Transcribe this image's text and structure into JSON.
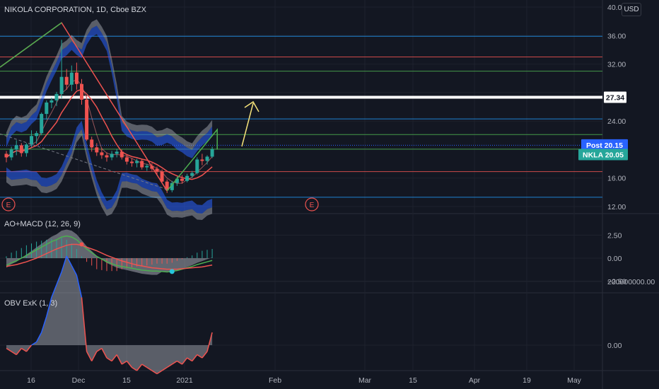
{
  "header": {
    "symbol_title": "NIKOLA CORPORATION, 1D, Cboe BZX",
    "currency": "USD",
    "macd_title": "AO+MACD (12, 26, 9)",
    "obv_title": "OBV ExK (1, 3)"
  },
  "price_axis": {
    "ticks": [
      "40.00",
      "36.00",
      "32.00",
      "28.00",
      "24.00",
      "20.00",
      "16.00",
      "12.00"
    ],
    "ylim": [
      12,
      40
    ]
  },
  "macd_axis": {
    "ticks": [
      "2.50",
      "0.00",
      "−2.50"
    ]
  },
  "obv_axis": {
    "ticks": [
      "200000000.00",
      "0.00"
    ]
  },
  "time_axis": {
    "labels": [
      "16",
      "Dec",
      "15",
      "2021",
      "Feb",
      "Mar",
      "15",
      "Apr",
      "19",
      "May"
    ]
  },
  "price_labels": [
    {
      "text": "27.34",
      "style": "white"
    },
    {
      "text": "Post  20.15",
      "style": "blue"
    },
    {
      "text": "NKLA  20.05",
      "style": "teal"
    }
  ],
  "earnings_marker": "E",
  "colors": {
    "background": "#131722",
    "grid": "#1e222d",
    "up": "#26a69a",
    "down": "#ef5350",
    "blue_line": "#2962ff",
    "hline_blue": "#2196f3",
    "hline_red": "#ef5350",
    "hline_green": "#4caf50",
    "arrow": "#f5e27a"
  },
  "chart_data": [
    {
      "type": "candlestick",
      "title": "NIKOLA CORPORATION, 1D, Cboe BZX",
      "ylim": [
        12,
        40
      ],
      "horizontal_levels": [
        {
          "price": 35.9,
          "color": "blue"
        },
        {
          "price": 33.0,
          "color": "red"
        },
        {
          "price": 31.0,
          "color": "green"
        },
        {
          "price": 27.34,
          "color": "white"
        },
        {
          "price": 24.3,
          "color": "blue"
        },
        {
          "price": 22.1,
          "color": "green"
        },
        {
          "price": 20.05,
          "color": "green"
        },
        {
          "price": 16.9,
          "color": "red"
        },
        {
          "price": 13.3,
          "color": "blue"
        }
      ],
      "candles": [
        [
          19.4,
          19.8,
          18.2,
          18.9
        ],
        [
          18.9,
          20.4,
          18.5,
          20.0
        ],
        [
          20.0,
          21.3,
          19.2,
          20.6
        ],
        [
          20.6,
          20.9,
          19.0,
          19.5
        ],
        [
          19.5,
          20.9,
          19.0,
          20.7
        ],
        [
          20.7,
          22.7,
          20.3,
          21.9
        ],
        [
          21.9,
          22.6,
          20.8,
          22.3
        ],
        [
          22.3,
          25.2,
          22.0,
          25.0
        ],
        [
          25.0,
          26.9,
          24.2,
          26.6
        ],
        [
          26.6,
          27.3,
          25.8,
          26.9
        ],
        [
          26.9,
          28.1,
          26.1,
          27.8
        ],
        [
          27.8,
          35.4,
          27.2,
          30.2
        ],
        [
          30.2,
          31.3,
          28.4,
          29.1
        ],
        [
          29.1,
          31.8,
          28.2,
          30.8
        ],
        [
          30.8,
          32.2,
          28.4,
          29.2
        ],
        [
          29.2,
          29.9,
          26.3,
          27.0
        ],
        [
          27.0,
          27.5,
          21.2,
          21.4
        ],
        [
          21.4,
          21.8,
          19.7,
          20.3
        ],
        [
          20.3,
          20.9,
          19.1,
          19.6
        ],
        [
          19.6,
          20.2,
          18.7,
          19.2
        ],
        [
          19.2,
          19.6,
          18.3,
          18.9
        ],
        [
          18.9,
          19.8,
          18.5,
          19.4
        ],
        [
          19.4,
          20.1,
          18.9,
          19.7
        ],
        [
          19.7,
          20.0,
          18.6,
          18.9
        ],
        [
          18.9,
          19.3,
          17.9,
          18.3
        ],
        [
          18.3,
          18.8,
          17.6,
          18.1
        ],
        [
          18.1,
          18.7,
          17.5,
          18.4
        ],
        [
          18.4,
          18.7,
          17.2,
          17.5
        ],
        [
          17.5,
          18.0,
          17.0,
          17.7
        ],
        [
          17.7,
          18.1,
          17.0,
          17.3
        ],
        [
          17.3,
          17.6,
          16.5,
          16.9
        ],
        [
          16.9,
          17.2,
          15.3,
          15.5
        ],
        [
          15.5,
          15.8,
          13.9,
          14.3
        ],
        [
          14.3,
          15.6,
          14.0,
          15.3
        ],
        [
          15.3,
          16.2,
          14.9,
          15.9
        ],
        [
          15.9,
          16.4,
          15.2,
          15.6
        ],
        [
          15.6,
          16.6,
          15.4,
          16.3
        ],
        [
          16.3,
          17.0,
          16.0,
          16.7
        ],
        [
          16.7,
          18.9,
          16.5,
          18.6
        ],
        [
          18.6,
          19.4,
          17.8,
          18.4
        ],
        [
          18.4,
          19.2,
          17.9,
          19.0
        ],
        [
          19.0,
          20.4,
          18.8,
          20.05
        ]
      ]
    },
    {
      "type": "line",
      "title": "AO+MACD (12, 26, 9)",
      "ylim": [
        -3.5,
        3.5
      ],
      "series": [
        {
          "name": "MACD",
          "values": [
            -0.8,
            -0.5,
            -0.3,
            0,
            0.3,
            0.6,
            0.9,
            1.2,
            1.5,
            1.8,
            2.0,
            2.3,
            2.4,
            2.3,
            2.0,
            1.5,
            1.0,
            0.6,
            0.2,
            -0.1,
            -0.4,
            -0.6,
            -0.8,
            -0.9,
            -1.0,
            -1.1,
            -1.2,
            -1.3,
            -1.35,
            -1.4,
            -1.4,
            -1.45,
            -1.5,
            -1.45,
            -1.35,
            -1.2,
            -1.05,
            -0.9,
            -0.7,
            -0.55,
            -0.4,
            -0.25
          ]
        },
        {
          "name": "Signal",
          "values": [
            -0.9,
            -0.8,
            -0.7,
            -0.55,
            -0.4,
            -0.2,
            0,
            0.25,
            0.5,
            0.75,
            1.0,
            1.2,
            1.4,
            1.5,
            1.5,
            1.4,
            1.2,
            1.0,
            0.8,
            0.55,
            0.3,
            0.1,
            -0.1,
            -0.3,
            -0.45,
            -0.6,
            -0.75,
            -0.85,
            -0.95,
            -1.05,
            -1.1,
            -1.15,
            -1.2,
            -1.2,
            -1.2,
            -1.15,
            -1.1,
            -1.05,
            -1.0,
            -0.95,
            -0.85,
            -0.75
          ]
        }
      ]
    },
    {
      "type": "area",
      "title": "OBV ExK (1, 3)",
      "ylim": [
        -100000000,
        320000000
      ],
      "values": [
        -10000000,
        -20000000,
        -30000000,
        -10000000,
        -20000000,
        0,
        10000000,
        40000000,
        90000000,
        150000000,
        190000000,
        230000000,
        280000000,
        250000000,
        220000000,
        150000000,
        -20000000,
        -50000000,
        -20000000,
        -10000000,
        -40000000,
        -50000000,
        -30000000,
        -60000000,
        -50000000,
        -70000000,
        -80000000,
        -60000000,
        -70000000,
        -80000000,
        -90000000,
        -80000000,
        -70000000,
        -60000000,
        -50000000,
        -60000000,
        -40000000,
        -50000000,
        -30000000,
        -40000000,
        -20000000,
        40000000
      ]
    }
  ]
}
